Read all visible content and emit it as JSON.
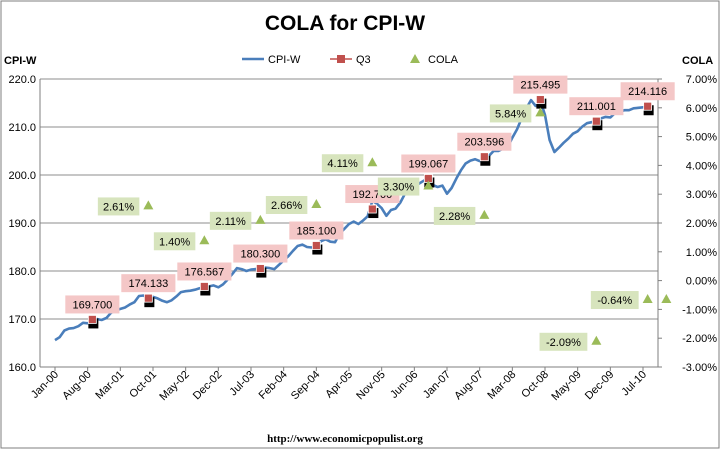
{
  "chart_data": {
    "type": "line",
    "title": "COLA for CPI-W",
    "left_axis": {
      "label": "CPI-W",
      "ylim": [
        160,
        220
      ],
      "ticks": [
        "160.0",
        "170.0",
        "180.0",
        "190.0",
        "200.0",
        "210.0",
        "220.0"
      ]
    },
    "right_axis": {
      "label": "COLA",
      "ylim": [
        -3,
        7
      ],
      "ticks": [
        "-3.00%",
        "-2.00%",
        "-1.00%",
        "0.00%",
        "1.00%",
        "2.00%",
        "3.00%",
        "4.00%",
        "5.00%",
        "6.00%",
        "7.00%"
      ]
    },
    "x_tick_labels": [
      "Jan-00",
      "Aug-00",
      "Mar-01",
      "Oct-01",
      "May-02",
      "Dec-02",
      "Jul-03",
      "Feb-04",
      "Sep-04",
      "Apr-05",
      "Nov-05",
      "Jun-06",
      "Jan-07",
      "Aug-07",
      "Mar-08",
      "Oct-08",
      "May-09",
      "Dec-09",
      "Jul-10"
    ],
    "legend": {
      "placement": "top",
      "entries": [
        "CPI-W",
        "Q3",
        "COLA"
      ]
    },
    "grid": {
      "horizontal": true,
      "vertical": false
    },
    "colors": {
      "cpiw": "#4a7ebb",
      "q3": "#c0504d",
      "cola": "#9bbb59",
      "q3_label_bg": "#f4c7c7",
      "cola_label_bg": "#d7e4bd"
    },
    "series": [
      {
        "name": "CPI-W",
        "axis": "left",
        "x": [
          2000.0,
          2000.083,
          2000.167,
          2000.25,
          2000.333,
          2000.417,
          2000.5,
          2000.583,
          2000.667,
          2000.75,
          2000.833,
          2000.917,
          2001.0,
          2001.083,
          2001.167,
          2001.25,
          2001.333,
          2001.417,
          2001.5,
          2001.583,
          2001.667,
          2001.75,
          2001.833,
          2001.917,
          2002.0,
          2002.083,
          2002.167,
          2002.25,
          2002.333,
          2002.417,
          2002.5,
          2002.583,
          2002.667,
          2002.75,
          2002.833,
          2002.917,
          2003.0,
          2003.083,
          2003.167,
          2003.25,
          2003.333,
          2003.417,
          2003.5,
          2003.583,
          2003.667,
          2003.75,
          2003.833,
          2003.917,
          2004.0,
          2004.083,
          2004.167,
          2004.25,
          2004.333,
          2004.417,
          2004.5,
          2004.583,
          2004.667,
          2004.75,
          2004.833,
          2004.917,
          2005.0,
          2005.083,
          2005.167,
          2005.25,
          2005.333,
          2005.417,
          2005.5,
          2005.583,
          2005.667,
          2005.75,
          2005.833,
          2005.917,
          2006.0,
          2006.083,
          2006.167,
          2006.25,
          2006.333,
          2006.417,
          2006.5,
          2006.583,
          2006.667,
          2006.75,
          2006.833,
          2006.917,
          2007.0,
          2007.083,
          2007.167,
          2007.25,
          2007.333,
          2007.417,
          2007.5,
          2007.583,
          2007.667,
          2007.75,
          2007.833,
          2007.917,
          2008.0,
          2008.083,
          2008.167,
          2008.25,
          2008.333,
          2008.417,
          2008.5,
          2008.583,
          2008.667,
          2008.75,
          2008.833,
          2008.917,
          2009.0,
          2009.083,
          2009.167,
          2009.25,
          2009.333,
          2009.417,
          2009.5,
          2009.583,
          2009.667,
          2009.75,
          2009.833,
          2009.917,
          2010.0,
          2010.083,
          2010.167,
          2010.25,
          2010.333,
          2010.417,
          2010.5,
          2010.583,
          2010.667
        ],
        "values": [
          165.6,
          166.2,
          167.6,
          168.0,
          168.1,
          168.5,
          169.2,
          169.1,
          169.4,
          170.0,
          169.8,
          170.2,
          171.3,
          171.8,
          172.1,
          172.4,
          173.0,
          173.5,
          174.8,
          174.9,
          174.3,
          174.6,
          174.3,
          173.8,
          173.5,
          173.9,
          174.7,
          175.6,
          175.8,
          175.9,
          176.1,
          176.4,
          176.6,
          176.8,
          177.0,
          176.6,
          177.2,
          178.2,
          179.4,
          180.6,
          180.4,
          180.0,
          180.3,
          180.4,
          180.5,
          180.7,
          180.6,
          180.4,
          181.3,
          182.2,
          183.1,
          184.2,
          185.2,
          185.5,
          185.0,
          184.9,
          185.2,
          186.2,
          186.6,
          186.1,
          186.0,
          187.8,
          188.8,
          189.8,
          190.3,
          189.8,
          190.5,
          191.4,
          194.6,
          194.0,
          193.1,
          191.5,
          192.7,
          193.0,
          194.3,
          196.1,
          197.7,
          197.9,
          198.2,
          198.8,
          199.1,
          197.9,
          197.5,
          197.8,
          196.1,
          197.3,
          199.3,
          201.0,
          202.4,
          203.0,
          203.3,
          202.9,
          203.1,
          204.0,
          205.0,
          205.0,
          205.5,
          205.8,
          207.8,
          209.5,
          211.8,
          213.9,
          215.6,
          214.4,
          215.5,
          212.5,
          207.3,
          204.8,
          205.7,
          206.7,
          207.6,
          208.6,
          209.1,
          210.1,
          210.8,
          211.0,
          211.2,
          211.8,
          212.1,
          212.0,
          212.9,
          213.2,
          213.5,
          213.5,
          213.9,
          214.0,
          214.1,
          214.2,
          214.1
        ]
      },
      {
        "name": "Q3",
        "axis": "left",
        "x": [
          2000.667,
          2001.667,
          2002.667,
          2003.667,
          2004.667,
          2005.667,
          2006.667,
          2007.667,
          2008.667,
          2009.667,
          2010.583
        ],
        "values": [
          169.7,
          174.133,
          176.567,
          180.3,
          185.1,
          192.7,
          199.067,
          203.596,
          215.495,
          211.001,
          214.116
        ]
      },
      {
        "name": "COLA",
        "axis": "right",
        "x": [
          2001.667,
          2002.667,
          2003.667,
          2004.667,
          2005.667,
          2006.667,
          2007.667,
          2008.667,
          2009.667,
          2010.583,
          2010.917
        ],
        "values": [
          2.61,
          1.4,
          2.11,
          2.66,
          4.11,
          3.3,
          2.28,
          5.84,
          -2.09,
          -0.64,
          -0.64
        ]
      }
    ],
    "q3_labels": [
      "169.700",
      "174.133",
      "176.567",
      "180.300",
      "185.100",
      "192.700",
      "199.067",
      "203.596",
      "215.495",
      "211.001",
      "214.116"
    ],
    "cola_labels": [
      "2.61%",
      "1.40%",
      "2.11%",
      "2.66%",
      "4.11%",
      "3.30%",
      "2.28%",
      "5.84%",
      "-2.09%",
      "-0.64%"
    ]
  },
  "footer": "http://www.economicpopulist.org"
}
